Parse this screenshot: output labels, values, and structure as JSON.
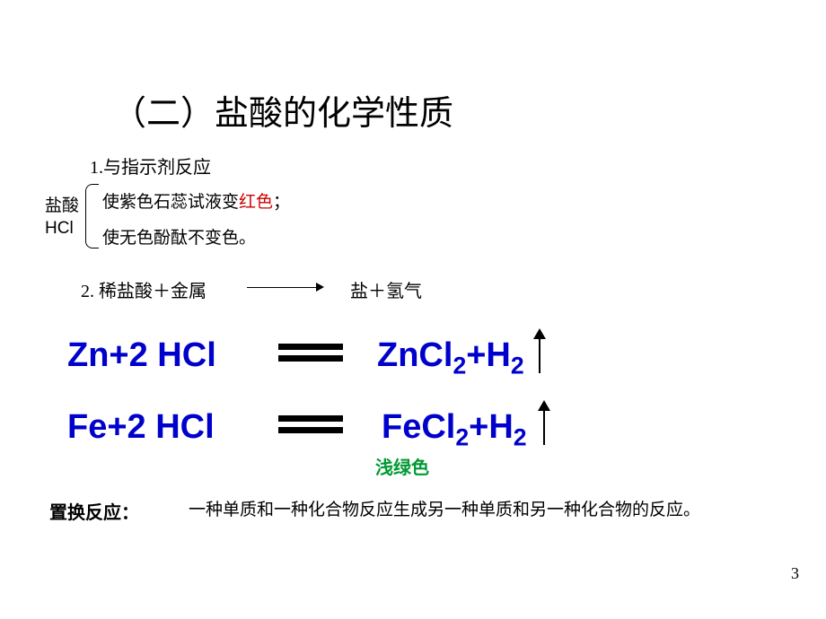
{
  "title": "（二）盐酸的化学性质",
  "section1": {
    "heading": "1.与指示剂反应",
    "label_top": "盐酸",
    "label_bottom": "HCl",
    "line1_prefix": "使紫色石蕊试液变",
    "line1_red": "红色",
    "line1_suffix": "；",
    "line2": "使无色酚酞不变色。"
  },
  "section2": {
    "heading": "2. 稀盐酸＋金属",
    "product": "盐＋氢气"
  },
  "equation1": {
    "left": "Zn+2 HCl",
    "right_html": "ZnCl<sub>2</sub>+H<sub>2</sub>"
  },
  "equation2": {
    "left": "Fe+2 HCl",
    "right_html": "FeCl<sub>2</sub>+H<sub>2</sub>"
  },
  "green_note": "浅绿色",
  "definition": {
    "label": "置换反应：",
    "text": "一种单质和一种化合物反应生成另一种单质和另一种化合物的反应。"
  },
  "page_number": "3",
  "colors": {
    "title": "#000000",
    "red": "#cc0000",
    "blue": "#0000cc",
    "green": "#009933",
    "black": "#000000",
    "background": "#ffffff"
  }
}
